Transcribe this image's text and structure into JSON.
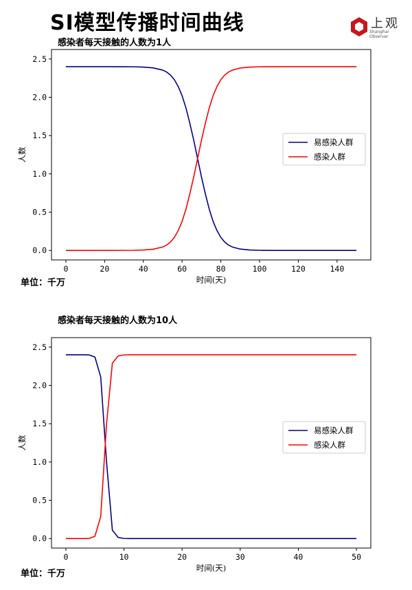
{
  "page": {
    "title": "SI模型传播时间曲线",
    "logo": {
      "text": "上观",
      "sub": "Shanghai Observer"
    }
  },
  "colors": {
    "susceptible": "#00008b",
    "infected": "#ff0000"
  },
  "chart_data": [
    {
      "type": "line",
      "title": "感染者每天接触的人数为1人",
      "xlabel": "时间(天)",
      "ylabel": "人数",
      "unit": "单位：千万",
      "xlim": [
        0,
        150
      ],
      "ylim": [
        0,
        2.5
      ],
      "xticks": [
        0,
        20,
        40,
        60,
        80,
        100,
        120,
        140
      ],
      "yticks": [
        0.0,
        0.5,
        1.0,
        1.5,
        2.0,
        2.5
      ],
      "legend": "center-right",
      "series": [
        {
          "name": "易感染人群",
          "color": "#00008b",
          "x": [
            0,
            10,
            20,
            30,
            35,
            40,
            45,
            50,
            52,
            54,
            56,
            58,
            60,
            62,
            64,
            66,
            68,
            70,
            72,
            74,
            76,
            78,
            80,
            82,
            84,
            86,
            90,
            95,
            100,
            110,
            120,
            130,
            140,
            150
          ],
          "y": [
            2.4,
            2.4,
            2.4,
            2.399,
            2.398,
            2.394,
            2.384,
            2.355,
            2.33,
            2.29,
            2.23,
            2.14,
            2.02,
            1.86,
            1.66,
            1.44,
            1.2,
            0.96,
            0.74,
            0.54,
            0.38,
            0.26,
            0.17,
            0.11,
            0.07,
            0.045,
            0.018,
            0.006,
            0.002,
            0.0,
            0.0,
            0.0,
            0.0,
            0.0
          ]
        },
        {
          "name": "感染人群",
          "color": "#ff0000",
          "x": [
            0,
            10,
            20,
            30,
            35,
            40,
            45,
            50,
            52,
            54,
            56,
            58,
            60,
            62,
            64,
            66,
            68,
            70,
            72,
            74,
            76,
            78,
            80,
            82,
            84,
            86,
            90,
            95,
            100,
            110,
            120,
            130,
            140,
            150
          ],
          "y": [
            0.0,
            0.0,
            0.0,
            0.001,
            0.002,
            0.006,
            0.016,
            0.045,
            0.07,
            0.11,
            0.17,
            0.26,
            0.38,
            0.54,
            0.74,
            0.96,
            1.2,
            1.44,
            1.66,
            1.86,
            2.02,
            2.14,
            2.23,
            2.29,
            2.33,
            2.355,
            2.382,
            2.394,
            2.398,
            2.4,
            2.4,
            2.4,
            2.4,
            2.4
          ]
        }
      ]
    },
    {
      "type": "line",
      "title": "感染者每天接触的人数为10人",
      "xlabel": "时间(天)",
      "ylabel": "人数",
      "unit": "单位：千万",
      "xlim": [
        0,
        50
      ],
      "ylim": [
        0,
        2.5
      ],
      "xticks": [
        0,
        10,
        20,
        30,
        40,
        50
      ],
      "yticks": [
        0.0,
        0.5,
        1.0,
        1.5,
        2.0,
        2.5
      ],
      "legend": "center-right",
      "series": [
        {
          "name": "易感染人群",
          "color": "#00008b",
          "x": [
            0,
            1,
            2,
            3,
            4,
            5,
            6,
            7,
            8,
            9,
            10,
            11,
            20,
            30,
            40,
            50
          ],
          "y": [
            2.4,
            2.4,
            2.4,
            2.4,
            2.398,
            2.37,
            2.11,
            1.0,
            0.11,
            0.015,
            0.002,
            0.0,
            0.0,
            0.0,
            0.0,
            0.0
          ]
        },
        {
          "name": "感染人群",
          "color": "#ff0000",
          "x": [
            0,
            1,
            2,
            3,
            4,
            5,
            6,
            7,
            8,
            9,
            10,
            11,
            20,
            30,
            40,
            50
          ],
          "y": [
            0.0,
            0.0,
            0.0,
            0.0,
            0.002,
            0.03,
            0.29,
            1.5,
            2.29,
            2.385,
            2.398,
            2.4,
            2.4,
            2.4,
            2.4,
            2.4
          ]
        }
      ]
    }
  ]
}
